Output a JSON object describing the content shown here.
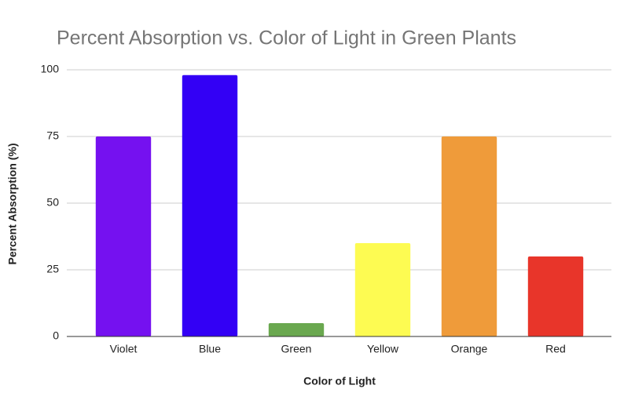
{
  "chart_data": {
    "type": "bar",
    "title": "Percent Absorption vs. Color of Light in Green Plants",
    "x_label": "Color of Light",
    "y_label": "Percent Absorption (%)",
    "categories": [
      "Violet",
      "Blue",
      "Green",
      "Yellow",
      "Orange",
      "Red"
    ],
    "values": [
      75,
      98,
      5,
      35,
      75,
      30
    ],
    "colors": [
      "#7511f0",
      "#3300f5",
      "#6aa84f",
      "#fdfb52",
      "#ef9b3a",
      "#e8352a"
    ],
    "ylim": [
      0,
      100
    ],
    "yticks": [
      0,
      25,
      50,
      75,
      100
    ],
    "grid": true
  }
}
